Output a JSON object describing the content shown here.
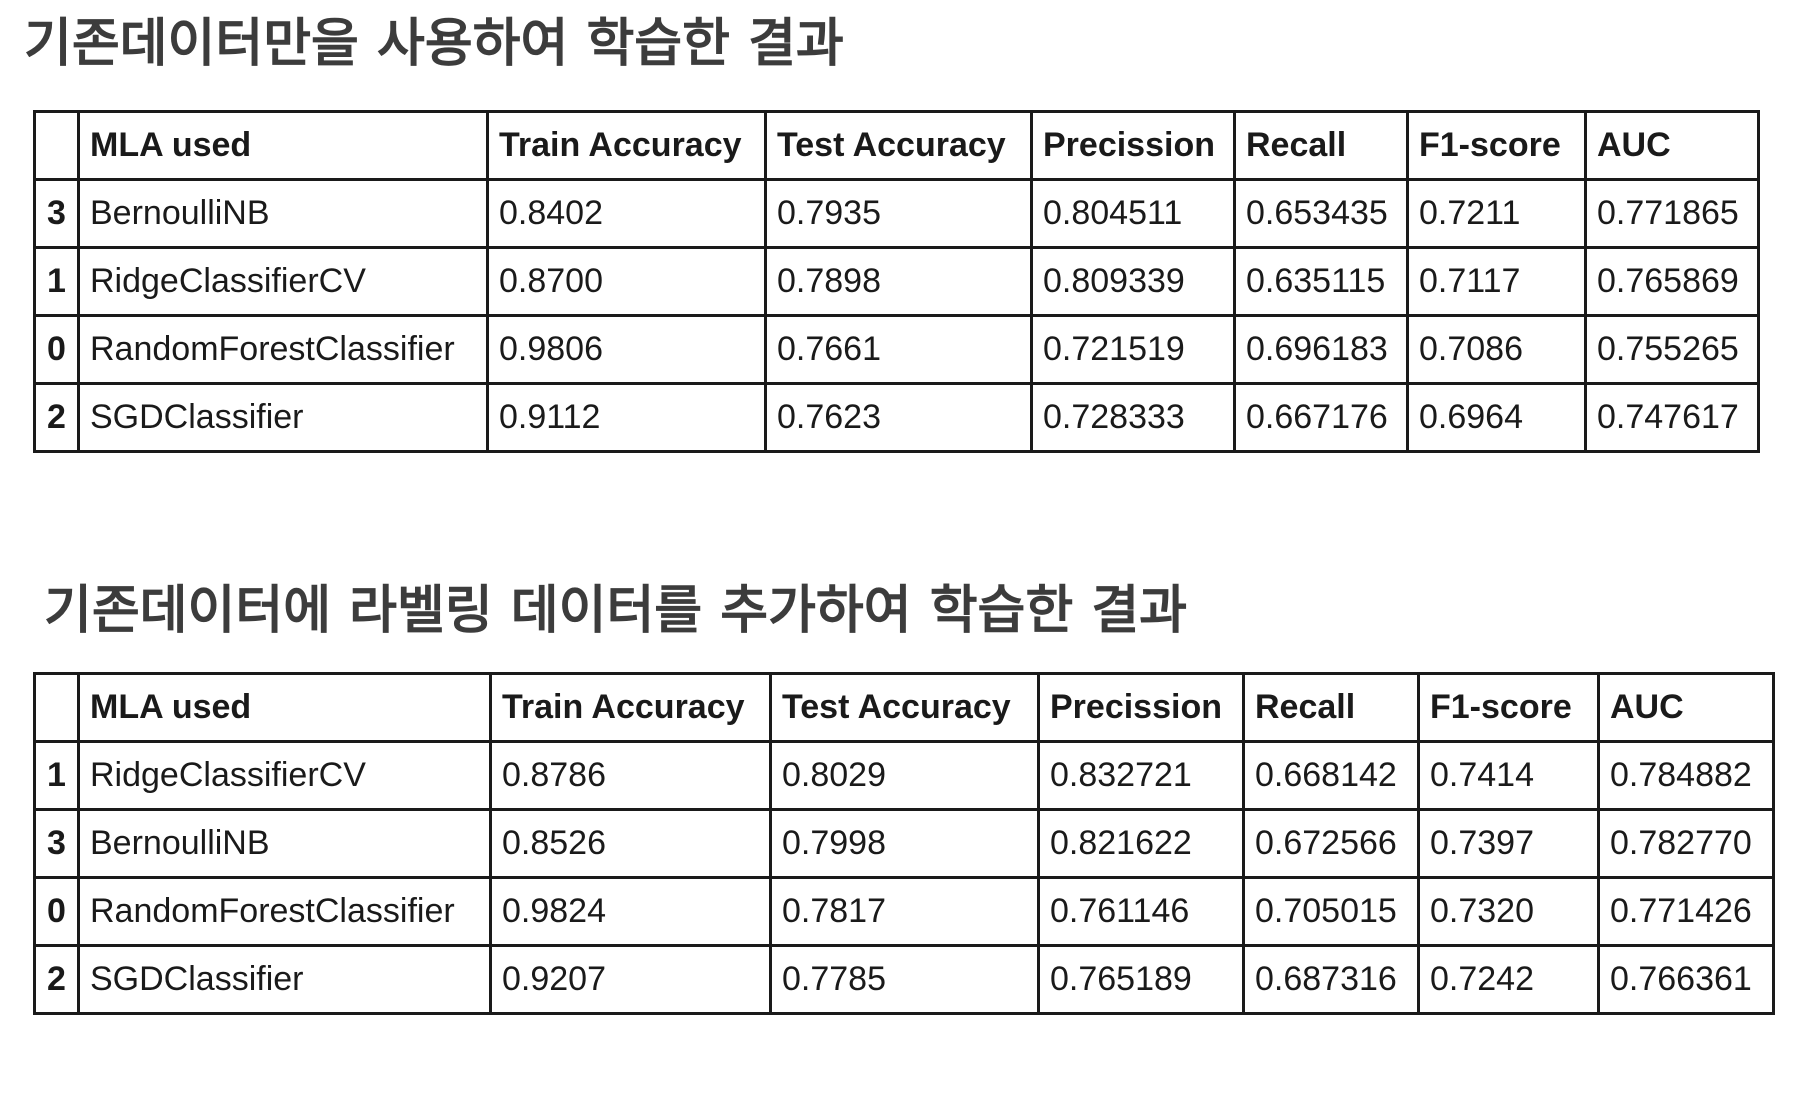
{
  "sections": [
    {
      "title": "기존데이터만을 사용하여 학습한 결과",
      "columns": [
        "",
        "MLA used",
        "Train Accuracy",
        "Test Accuracy",
        "Precission",
        "Recall",
        "F1-score",
        "AUC"
      ],
      "rows": [
        [
          "3",
          "BernoulliNB",
          "0.8402",
          "0.7935",
          "0.804511",
          "0.653435",
          "0.7211",
          "0.771865"
        ],
        [
          "1",
          "RidgeClassifierCV",
          "0.8700",
          "0.7898",
          "0.809339",
          "0.635115",
          "0.7117",
          "0.765869"
        ],
        [
          "0",
          "RandomForestClassifier",
          "0.9806",
          "0.7661",
          "0.721519",
          "0.696183",
          "0.7086",
          "0.755265"
        ],
        [
          "2",
          "SGDClassifier",
          "0.9112",
          "0.7623",
          "0.728333",
          "0.667176",
          "0.6964",
          "0.747617"
        ]
      ]
    },
    {
      "title": "기존데이터에 라벨링 데이터를 추가하여 학습한 결과",
      "columns": [
        "",
        "MLA used",
        "Train Accuracy",
        "Test Accuracy",
        "Precission",
        "Recall",
        "F1-score",
        "AUC"
      ],
      "rows": [
        [
          "1",
          "RidgeClassifierCV",
          "0.8786",
          "0.8029",
          "0.832721",
          "0.668142",
          "0.7414",
          "0.784882"
        ],
        [
          "3",
          "BernoulliNB",
          "0.8526",
          "0.7998",
          "0.821622",
          "0.672566",
          "0.7397",
          "0.782770"
        ],
        [
          "0",
          "RandomForestClassifier",
          "0.9824",
          "0.7817",
          "0.761146",
          "0.705015",
          "0.7320",
          "0.771426"
        ],
        [
          "2",
          "SGDClassifier",
          "0.9207",
          "0.7785",
          "0.765189",
          "0.687316",
          "0.7242",
          "0.766361"
        ]
      ]
    }
  ]
}
